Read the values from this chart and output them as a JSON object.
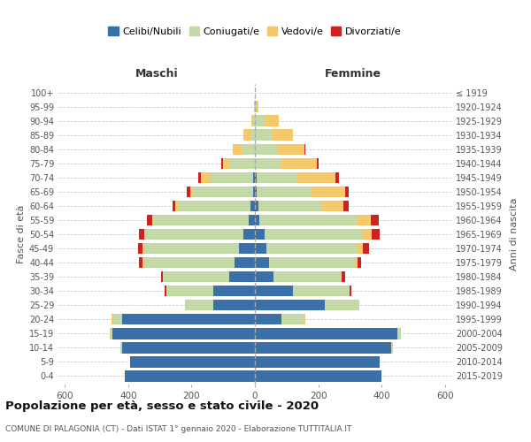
{
  "age_groups": [
    "0-4",
    "5-9",
    "10-14",
    "15-19",
    "20-24",
    "25-29",
    "30-34",
    "35-39",
    "40-44",
    "45-49",
    "50-54",
    "55-59",
    "60-64",
    "65-69",
    "70-74",
    "75-79",
    "80-84",
    "85-89",
    "90-94",
    "95-99",
    "100+"
  ],
  "birth_years": [
    "2015-2019",
    "2010-2014",
    "2005-2009",
    "2000-2004",
    "1995-1999",
    "1990-1994",
    "1985-1989",
    "1980-1984",
    "1975-1979",
    "1970-1974",
    "1965-1969",
    "1960-1964",
    "1955-1959",
    "1950-1954",
    "1945-1949",
    "1940-1944",
    "1935-1939",
    "1930-1934",
    "1925-1929",
    "1920-1924",
    "≤ 1919"
  ],
  "maschi": {
    "celibe": [
      410,
      395,
      420,
      450,
      420,
      130,
      130,
      80,
      65,
      50,
      35,
      20,
      15,
      5,
      5,
      0,
      0,
      0,
      0,
      0,
      0
    ],
    "coniugato": [
      0,
      0,
      5,
      8,
      30,
      90,
      150,
      210,
      285,
      300,
      310,
      300,
      225,
      190,
      135,
      80,
      40,
      15,
      5,
      2,
      0
    ],
    "vedovo": [
      0,
      0,
      0,
      0,
      3,
      0,
      0,
      0,
      5,
      5,
      5,
      5,
      10,
      10,
      30,
      20,
      30,
      20,
      5,
      2,
      0
    ],
    "divorziato": [
      0,
      0,
      0,
      0,
      0,
      0,
      5,
      5,
      10,
      15,
      15,
      15,
      10,
      10,
      10,
      5,
      0,
      0,
      0,
      0,
      0
    ]
  },
  "femmine": {
    "nubile": [
      400,
      395,
      430,
      450,
      85,
      220,
      120,
      60,
      45,
      35,
      30,
      15,
      10,
      5,
      5,
      0,
      0,
      0,
      0,
      0,
      0
    ],
    "coniugata": [
      0,
      0,
      5,
      10,
      70,
      110,
      180,
      210,
      270,
      290,
      310,
      310,
      200,
      170,
      130,
      85,
      70,
      55,
      30,
      3,
      0
    ],
    "vedova": [
      0,
      0,
      0,
      0,
      5,
      0,
      0,
      5,
      10,
      15,
      30,
      40,
      70,
      110,
      120,
      110,
      85,
      65,
      45,
      8,
      0
    ],
    "divorziata": [
      0,
      0,
      0,
      0,
      0,
      0,
      5,
      10,
      10,
      20,
      25,
      25,
      15,
      10,
      10,
      5,
      5,
      0,
      0,
      0,
      0
    ]
  },
  "colors": {
    "celibe": "#3a6fa8",
    "coniugato": "#c5d9a8",
    "vedovo": "#f5c96a",
    "divorziato": "#cc2222"
  },
  "title": "Popolazione per età, sesso e stato civile - 2020",
  "subtitle": "COMUNE DI PALAGONIA (CT) - Dati ISTAT 1° gennaio 2020 - Elaborazione TUTTITALIA.IT",
  "xlabel_left": "Maschi",
  "xlabel_right": "Femmine",
  "ylabel_left": "Fasce di età",
  "ylabel_right": "Anni di nascita",
  "xlim": 620,
  "legend_labels": [
    "Celibi/Nubili",
    "Coniugati/e",
    "Vedovi/e",
    "Divorziati/e"
  ],
  "bg_color": "#ffffff",
  "grid_color": "#cccccc"
}
